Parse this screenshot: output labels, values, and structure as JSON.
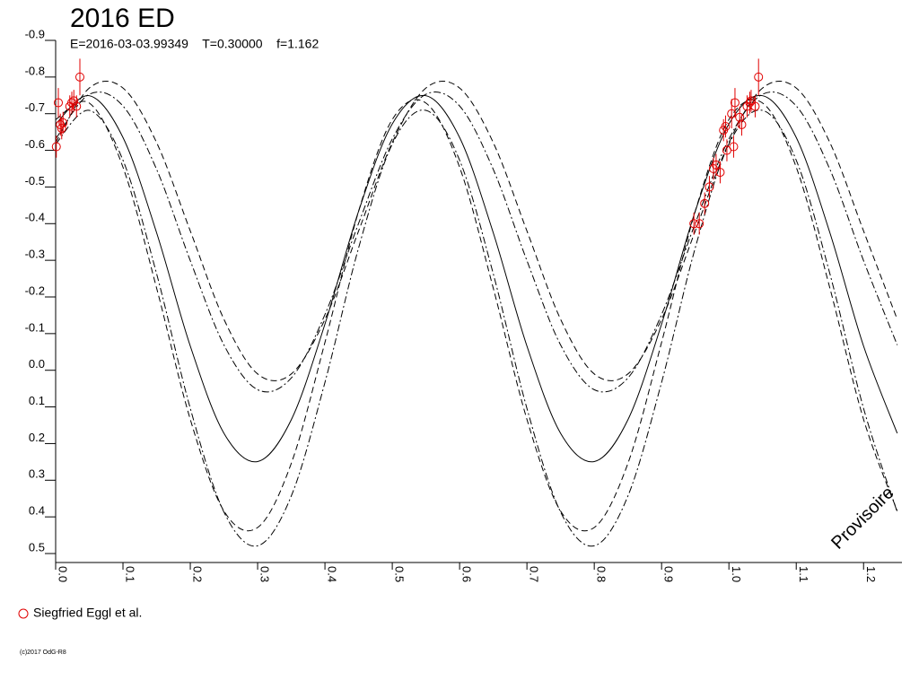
{
  "chart_data": {
    "type": "line",
    "title": "2016 ED",
    "subtitle": "E=2016-03-03.99349    T=0.30000    f=1.162",
    "watermark": "Provisoire",
    "footer": "(c)2017 OdG-R8",
    "xlim": [
      0,
      1.257
    ],
    "ylim": [
      -0.9,
      0.5
    ],
    "y_inverted": true,
    "xticks": [
      {
        "value": 0,
        "label": "0.0"
      },
      0.1,
      0.2,
      0.3,
      0.4,
      0.5,
      0.6,
      0.7,
      0.8,
      0.9,
      {
        "value": 1,
        "label": "1.0"
      },
      1.1,
      1.2
    ],
    "yticks": [
      -0.9,
      -0.8,
      -0.7,
      -0.6,
      -0.5,
      -0.4,
      -0.3,
      -0.2,
      -0.1,
      {
        "value": 0,
        "label": "0.0"
      },
      0.1,
      0.2,
      0.3,
      0.4,
      0.5
    ],
    "x": [
      0,
      0.05,
      0.1,
      0.15,
      0.2,
      0.25,
      0.3,
      0.35,
      0.4,
      0.45,
      0.5,
      0.55,
      0.6,
      0.65,
      0.7,
      0.75,
      0.8,
      0.85,
      0.9,
      0.95,
      1,
      1.05,
      1.1,
      1.15,
      1.2,
      1.25
    ],
    "series": [
      {
        "color": "#000000",
        "style": "solid",
        "values": [
          -0.672,
          -0.749,
          -0.635,
          -0.375,
          -0.066,
          0.172,
          0.249,
          0.135,
          -0.126,
          -0.434,
          -0.672,
          -0.749,
          -0.635,
          -0.375,
          -0.066,
          0.172,
          0.249,
          0.135,
          -0.126,
          -0.434,
          -0.672,
          -0.749,
          -0.635,
          -0.375,
          -0.066,
          0.172
        ]
      },
      {
        "color": "#000000",
        "style": "dashed",
        "values": [
          -0.621,
          -0.77,
          -0.77,
          -0.621,
          -0.38,
          -0.139,
          0.01,
          0.01,
          -0.139,
          -0.38,
          -0.621,
          -0.77,
          -0.77,
          -0.621,
          -0.38,
          -0.139,
          0.01,
          0.01,
          -0.139,
          -0.38,
          -0.621,
          -0.77,
          -0.77,
          -0.621,
          -0.38,
          -0.139
        ]
      },
      {
        "color": "#000000",
        "style": "dashdot",
        "values": [
          -0.631,
          -0.753,
          -0.721,
          -0.548,
          -0.299,
          -0.069,
          0.053,
          0.021,
          -0.152,
          -0.401,
          -0.631,
          -0.753,
          -0.721,
          -0.548,
          -0.299,
          -0.069,
          0.053,
          0.021,
          -0.152,
          -0.401,
          -0.631,
          -0.753,
          -0.721,
          -0.548,
          -0.299,
          -0.069
        ]
      },
      {
        "color": "#000000",
        "style": "dashed",
        "values": [
          -0.684,
          -0.729,
          -0.554,
          -0.224,
          0.134,
          0.384,
          0.429,
          0.254,
          -0.076,
          -0.434,
          -0.684,
          -0.729,
          -0.554,
          -0.224,
          0.134,
          0.384,
          0.429,
          0.254,
          -0.076,
          -0.434,
          -0.684,
          -0.729,
          -0.554,
          -0.224,
          0.134,
          0.384
        ]
      },
      {
        "color": "#000000",
        "style": "dashdot",
        "values": [
          -0.617,
          -0.709,
          -0.573,
          -0.263,
          0.104,
          0.387,
          0.479,
          0.343,
          0.033,
          -0.334,
          -0.617,
          -0.709,
          -0.573,
          -0.263,
          0.104,
          0.387,
          0.479,
          0.343,
          0.033,
          -0.334,
          -0.617,
          -0.709,
          -0.573,
          -0.263,
          0.104,
          0.387
        ]
      }
    ],
    "observations": {
      "name": "Siegfried Eggl et al.",
      "color": "#e00000",
      "x": [
        0.001,
        0.004,
        0.007,
        0.009,
        0.011,
        0.021,
        0.024,
        0.027,
        0.031,
        0.036,
        0.948,
        0.956,
        0.964,
        0.971,
        0.977,
        0.981,
        0.987,
        0.992,
        0.995,
        0.997,
        1.004,
        1.007,
        1.009,
        1.016,
        1.019,
        1.027,
        1.031,
        1.033,
        1.039,
        1.044
      ],
      "values": [
        -0.61,
        -0.73,
        -0.67,
        -0.66,
        -0.675,
        -0.72,
        -0.73,
        -0.735,
        -0.72,
        -0.8,
        -0.4,
        -0.4,
        -0.455,
        -0.5,
        -0.55,
        -0.56,
        -0.54,
        -0.655,
        -0.665,
        -0.6,
        -0.7,
        -0.61,
        -0.73,
        -0.69,
        -0.67,
        -0.72,
        -0.73,
        -0.735,
        -0.72,
        -0.8
      ],
      "errors": [
        0.03,
        0.04,
        0.03,
        0.03,
        0.03,
        0.03,
        0.03,
        0.03,
        0.03,
        0.05,
        0.03,
        0.03,
        0.03,
        0.03,
        0.03,
        0.03,
        0.03,
        0.03,
        0.03,
        0.03,
        0.04,
        0.03,
        0.04,
        0.03,
        0.03,
        0.03,
        0.03,
        0.03,
        0.03,
        0.05
      ]
    }
  }
}
